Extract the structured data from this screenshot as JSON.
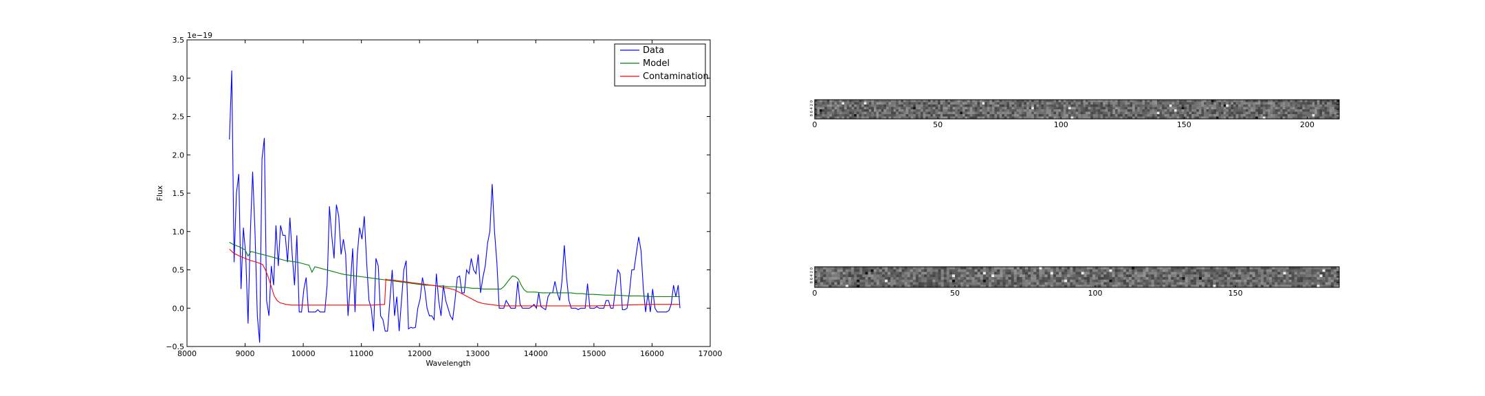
{
  "chart_data": [
    {
      "type": "line",
      "title": "",
      "xlabel": "Wavelength",
      "ylabel": "Flux",
      "offset_label": "1e−19",
      "xlim": [
        8000,
        17000
      ],
      "ylim": [
        -0.5,
        3.5
      ],
      "xticks": [
        8000,
        9000,
        10000,
        11000,
        12000,
        13000,
        14000,
        15000,
        16000,
        17000
      ],
      "yticks": [
        -0.5,
        0.0,
        0.5,
        1.0,
        1.5,
        2.0,
        2.5,
        3.0,
        3.5
      ],
      "xtick_labels": [
        "8000",
        "9000",
        "10000",
        "11000",
        "12000",
        "13000",
        "14000",
        "15000",
        "16000",
        "17000"
      ],
      "ytick_labels": [
        "−0.5",
        "0.0",
        "0.5",
        "1.0",
        "1.5",
        "2.0",
        "2.5",
        "3.0",
        "3.5"
      ],
      "legend_position": "top-right",
      "grid": false,
      "series": [
        {
          "name": "Data",
          "color": "#0000ff",
          "x": [
            8730,
            8770,
            8810,
            8850,
            8890,
            8930,
            8970,
            9010,
            9050,
            9090,
            9130,
            9170,
            9210,
            9250,
            9290,
            9330,
            9370,
            9410,
            9450,
            9490,
            9530,
            9570,
            9610,
            9650,
            9690,
            9730,
            9770,
            9810,
            9850,
            9890,
            9930,
            9970,
            10010,
            10050,
            10090,
            10130,
            10170,
            10210,
            10250,
            10290,
            10330,
            10370,
            10410,
            10450,
            10490,
            10530,
            10570,
            10610,
            10650,
            10690,
            10730,
            10770,
            10810,
            10850,
            10890,
            10930,
            10970,
            11010,
            11050,
            11090,
            11130,
            11170,
            11210,
            11250,
            11290,
            11330,
            11370,
            11410,
            11450,
            11490,
            11530,
            11570,
            11610,
            11650,
            11690,
            11730,
            11770,
            11810,
            11850,
            11890,
            11930,
            11970,
            12010,
            12050,
            12090,
            12130,
            12170,
            12210,
            12250,
            12290,
            12330,
            12370,
            12410,
            12450,
            12490,
            12530,
            12570,
            12610,
            12650,
            12690,
            12730,
            12770,
            12810,
            12850,
            12890,
            12930,
            12970,
            13010,
            13050,
            13090,
            13130,
            13170,
            13210,
            13250,
            13290,
            13330,
            13370,
            13410,
            13450,
            13490,
            13530,
            13570,
            13610,
            13650,
            13690,
            13730,
            13770,
            13810,
            13850,
            13890,
            13930,
            13970,
            14010,
            14050,
            14090,
            14130,
            14170,
            14210,
            14250,
            14290,
            14330,
            14370,
            14410,
            14450,
            14490,
            14530,
            14570,
            14610,
            14650,
            14690,
            14730,
            14770,
            14810,
            14850,
            14890,
            14930,
            14970,
            15010,
            15050,
            15090,
            15130,
            15170,
            15210,
            15250,
            15290,
            15330,
            15370,
            15410,
            15450,
            15490,
            15530,
            15570,
            15610,
            15650,
            15690,
            15730,
            15770,
            15810,
            15850,
            15890,
            15930,
            15970,
            16010,
            16050,
            16090,
            16130,
            16170,
            16210,
            16250,
            16290,
            16330,
            16370,
            16410,
            16450,
            16480
          ],
          "y": [
            2.2,
            3.1,
            0.6,
            1.5,
            1.75,
            0.25,
            1.05,
            0.7,
            -0.2,
            1.0,
            1.78,
            1.0,
            -0.1,
            -0.45,
            1.95,
            2.22,
            0.1,
            -0.1,
            0.55,
            0.3,
            1.08,
            0.55,
            1.08,
            0.95,
            0.95,
            0.6,
            1.18,
            0.7,
            0.3,
            0.95,
            -0.05,
            -0.05,
            0.25,
            0.4,
            -0.05,
            -0.05,
            -0.05,
            -0.05,
            -0.02,
            -0.05,
            -0.05,
            -0.05,
            0.3,
            1.33,
            0.95,
            0.65,
            1.35,
            1.2,
            0.7,
            0.9,
            0.7,
            -0.1,
            0.3,
            0.78,
            -0.05,
            0.7,
            1.05,
            0.9,
            1.2,
            0.6,
            0.1,
            0.0,
            -0.3,
            0.65,
            0.55,
            -0.1,
            -0.15,
            -0.3,
            -0.3,
            0.1,
            0.5,
            -0.1,
            0.15,
            -0.3,
            0.1,
            0.5,
            0.62,
            -0.27,
            -0.25,
            -0.26,
            -0.25,
            0.0,
            0.12,
            0.4,
            0.25,
            0.0,
            -0.1,
            -0.1,
            -0.15,
            0.45,
            0.1,
            -0.1,
            0.3,
            0.1,
            0.0,
            -0.1,
            -0.15,
            0.1,
            0.4,
            0.42,
            0.2,
            0.2,
            0.5,
            0.45,
            0.65,
            0.5,
            0.45,
            0.7,
            0.2,
            0.4,
            0.55,
            0.85,
            1.0,
            1.62,
            1.0,
            0.6,
            0.0,
            0.0,
            0.0,
            0.1,
            0.05,
            0.0,
            0.0,
            0.0,
            0.35,
            0.05,
            0.0,
            0.0,
            0.0,
            0.0,
            0.02,
            0.05,
            0.0,
            0.2,
            0.02,
            0.0,
            -0.02,
            0.15,
            0.2,
            0.2,
            0.35,
            0.2,
            0.1,
            0.35,
            0.82,
            0.4,
            0.1,
            0.0,
            0.0,
            0.0,
            -0.02,
            0.0,
            0.0,
            0.0,
            0.32,
            0.0,
            0.0,
            0.0,
            0.02,
            0.0,
            0.0,
            0.0,
            0.1,
            0.1,
            0.0,
            0.0,
            0.25,
            0.5,
            0.45,
            -0.02,
            -0.02,
            0.0,
            0.2,
            0.5,
            0.5,
            0.72,
            0.93,
            0.75,
            0.25,
            -0.05,
            0.2,
            -0.05,
            0.25,
            0.0,
            -0.05,
            -0.05,
            -0.05,
            -0.05,
            -0.05,
            -0.03,
            0.05,
            0.3,
            0.15,
            0.3,
            0.0
          ]
        },
        {
          "name": "Model",
          "color": "#008000",
          "x": [
            8730,
            8800,
            8900,
            9000,
            9050,
            9100,
            9200,
            9300,
            9400,
            9500,
            9600,
            9700,
            9800,
            9900,
            10000,
            10100,
            10150,
            10200,
            10300,
            10400,
            10500,
            10600,
            10700,
            10800,
            10900,
            11000,
            11100,
            11200,
            11300,
            11400,
            11500,
            11600,
            11700,
            11800,
            11900,
            12000,
            12100,
            12200,
            12300,
            12400,
            12500,
            12600,
            12700,
            12800,
            12900,
            13000,
            13100,
            13200,
            13300,
            13400,
            13450,
            13500,
            13550,
            13600,
            13650,
            13700,
            13750,
            13800,
            13850,
            13900,
            14000,
            14100,
            14200,
            14300,
            14400,
            14500,
            14600,
            14700,
            14800,
            14900,
            15000,
            15200,
            15400,
            15600,
            15800,
            16000,
            16200,
            16400,
            16480
          ],
          "y": [
            0.86,
            0.83,
            0.8,
            0.76,
            0.68,
            0.74,
            0.72,
            0.7,
            0.68,
            0.66,
            0.64,
            0.62,
            0.61,
            0.6,
            0.58,
            0.56,
            0.47,
            0.54,
            0.52,
            0.5,
            0.48,
            0.46,
            0.44,
            0.43,
            0.42,
            0.41,
            0.4,
            0.39,
            0.38,
            0.37,
            0.36,
            0.35,
            0.34,
            0.33,
            0.32,
            0.31,
            0.3,
            0.3,
            0.29,
            0.29,
            0.28,
            0.28,
            0.27,
            0.27,
            0.26,
            0.26,
            0.25,
            0.25,
            0.25,
            0.25,
            0.28,
            0.33,
            0.38,
            0.42,
            0.41,
            0.38,
            0.3,
            0.24,
            0.21,
            0.21,
            0.21,
            0.2,
            0.2,
            0.2,
            0.2,
            0.2,
            0.2,
            0.19,
            0.19,
            0.18,
            0.18,
            0.17,
            0.17,
            0.16,
            0.16,
            0.15,
            0.15,
            0.15,
            0.15
          ]
        },
        {
          "name": "Contamination",
          "color": "#ff0000",
          "x": [
            8730,
            8800,
            8900,
            9000,
            9100,
            9200,
            9300,
            9350,
            9400,
            9450,
            9500,
            9550,
            9600,
            9700,
            9800,
            10000,
            10200,
            10400,
            10600,
            10800,
            11000,
            11200,
            11400,
            11420,
            11450,
            11500,
            11600,
            11700,
            11800,
            11900,
            12000,
            12100,
            12200,
            12300,
            12400,
            12500,
            12600,
            12700,
            12800,
            12900,
            13000,
            13100,
            13200,
            13300,
            13400,
            13600,
            13800,
            14000,
            14500,
            15000,
            15500,
            16000,
            16480
          ],
          "y": [
            0.77,
            0.72,
            0.68,
            0.65,
            0.62,
            0.6,
            0.57,
            0.5,
            0.4,
            0.28,
            0.16,
            0.1,
            0.07,
            0.05,
            0.04,
            0.04,
            0.04,
            0.04,
            0.04,
            0.04,
            0.04,
            0.04,
            0.05,
            0.38,
            0.37,
            0.37,
            0.36,
            0.35,
            0.34,
            0.33,
            0.32,
            0.31,
            0.3,
            0.29,
            0.27,
            0.26,
            0.24,
            0.2,
            0.16,
            0.12,
            0.08,
            0.06,
            0.05,
            0.04,
            0.03,
            0.03,
            0.03,
            0.03,
            0.03,
            0.03,
            0.04,
            0.05,
            0.05
          ]
        }
      ]
    },
    {
      "type": "heatmap",
      "title": "",
      "xlim": [
        0,
        213
      ],
      "xticks": [
        0,
        50,
        100,
        150,
        200
      ],
      "xtick_labels": [
        "0",
        "50",
        "100",
        "150",
        "200"
      ],
      "ylabel_ticks": [
        "0",
        "2",
        "4",
        "6",
        "8"
      ],
      "ncols": 213,
      "nrows": 8,
      "colormap": "gray"
    },
    {
      "type": "heatmap",
      "title": "",
      "xlim": [
        0,
        187
      ],
      "xticks": [
        0,
        50,
        100,
        150
      ],
      "xtick_labels": [
        "0",
        "50",
        "100",
        "150"
      ],
      "ylabel_ticks": [
        "0",
        "2",
        "4",
        "6",
        "8"
      ],
      "ncols": 187,
      "nrows": 8,
      "colormap": "gray"
    }
  ]
}
